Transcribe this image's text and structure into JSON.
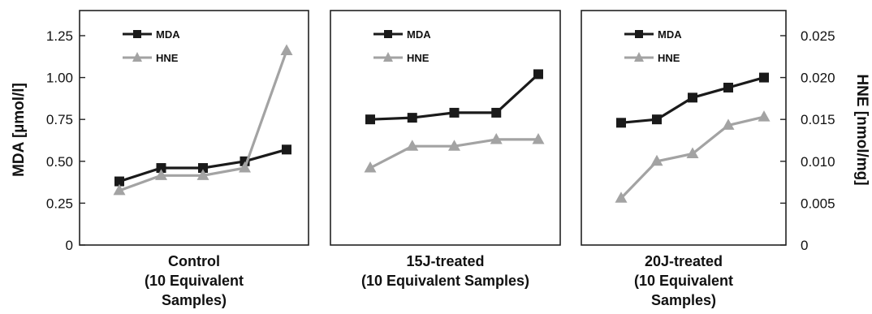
{
  "chart_data": {
    "type": "line",
    "ylabel_left": "MDA [µmol/l]",
    "ylabel_right": "HNE [nmol/mg]",
    "ylim_left": [
      0,
      1.4
    ],
    "ylim_right": [
      0,
      0.028
    ],
    "yticks_left": [
      "0",
      "0.25",
      "0.50",
      "0.75",
      "1.00",
      "1.25"
    ],
    "yticks_right": [
      "0",
      "0.005",
      "0.010",
      "0.015",
      "0.020",
      "0.025"
    ],
    "ytick_values_left": [
      0,
      0.25,
      0.5,
      0.75,
      1.0,
      1.25
    ],
    "ytick_values_right": [
      0,
      0.005,
      0.01,
      0.015,
      0.02,
      0.025
    ],
    "legend_placement": "top-left",
    "colors": {
      "MDA": "#1a1a1a",
      "HNE": "#a3a3a3",
      "frame": "#222222"
    },
    "panels": [
      {
        "title_lines": [
          "Control",
          "(10 Equivalent",
          "Samples)"
        ],
        "x": [
          1,
          2,
          3,
          4,
          5
        ],
        "series": [
          {
            "name": "MDA",
            "marker": "square",
            "values": [
              0.38,
              0.46,
              0.46,
              0.5,
              0.57
            ]
          },
          {
            "name": "HNE",
            "marker": "triangle",
            "values": [
              0.0065,
              0.0083,
              0.0083,
              0.0092,
              0.0232
            ]
          }
        ]
      },
      {
        "title_lines": [
          "15J-treated",
          "(10 Equivalent Samples)"
        ],
        "x": [
          1,
          2,
          3,
          4,
          5
        ],
        "series": [
          {
            "name": "MDA",
            "marker": "square",
            "values": [
              0.75,
              0.76,
              0.79,
              0.79,
              1.02
            ]
          },
          {
            "name": "HNE",
            "marker": "triangle",
            "values": [
              0.0092,
              0.0118,
              0.0118,
              0.0126,
              0.0126
            ]
          }
        ]
      },
      {
        "title_lines": [
          "20J-treated",
          "(10 Equivalent",
          "Samples)"
        ],
        "x": [
          1,
          2,
          3,
          4,
          5
        ],
        "series": [
          {
            "name": "MDA",
            "marker": "square",
            "values": [
              0.73,
              0.75,
              0.88,
              0.94,
              1.0
            ]
          },
          {
            "name": "HNE",
            "marker": "triangle",
            "values": [
              0.0056,
              0.01,
              0.0109,
              0.0143,
              0.0153
            ]
          }
        ]
      }
    ]
  }
}
